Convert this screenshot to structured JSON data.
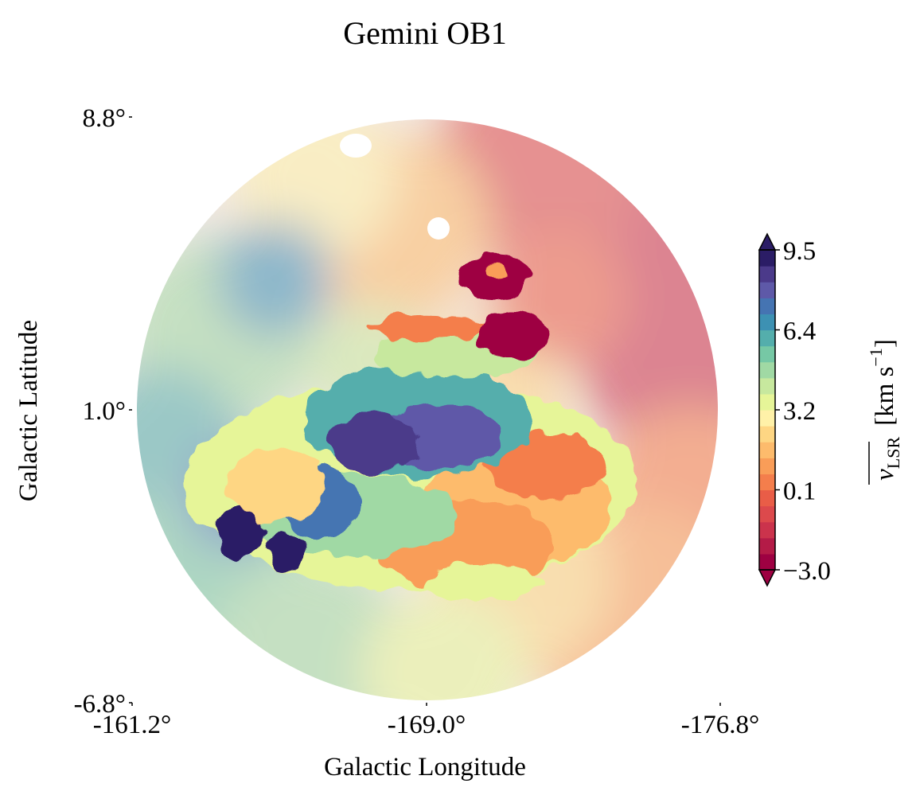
{
  "chart_data": {
    "type": "heatmap",
    "projection": "circular-field",
    "title": "Gemini OB1",
    "xlabel": "Galactic Longitude",
    "ylabel": "Galactic Latitude",
    "x_ticks": [
      "-161.2°",
      "-169.0°",
      "-176.8°"
    ],
    "y_ticks": [
      "8.8°",
      "1.0°",
      "-6.8°"
    ],
    "x_range": [
      -161.2,
      -176.8
    ],
    "y_range": [
      -6.8,
      8.8
    ],
    "field_center": [
      -169.0,
      1.0
    ],
    "field_radius_deg": 7.5,
    "colorbar": {
      "label": "v_LSR [km s^-1]",
      "label_main": "v",
      "label_sub": "LSR",
      "label_unit_open": "[km s",
      "label_unit_exp": "−1",
      "label_unit_close": "]",
      "range": [
        -3.0,
        9.5
      ],
      "ticks": [
        "−3.0",
        "0.1",
        "3.2",
        "6.4",
        "9.5"
      ],
      "extend": "both",
      "colormap": "Spectral",
      "colors": [
        "#9e0142",
        "#b41b47",
        "#cb334c",
        "#dc494c",
        "#e95d47",
        "#f47e4c",
        "#f99d58",
        "#fdbb6c",
        "#fed683",
        "#fff1a8",
        "#e6f598",
        "#c7e89e",
        "#a0d9a4",
        "#76c8a5",
        "#54aeac",
        "#3d91b3",
        "#4574b2",
        "#5e59a8",
        "#4b3a8a",
        "#2b1d66"
      ]
    },
    "annotation": "background field shown semi-transparent; cluster region shown at full opacity",
    "regions": [
      {
        "name": "main-cluster",
        "center": [
          -168.6,
          -0.9
        ],
        "velocity_range": [
          -1.0,
          9.5
        ]
      },
      {
        "name": "red-knot-upper",
        "center": [
          -170.8,
          4.4
        ],
        "velocity_range": [
          -3.0,
          1.0
        ]
      },
      {
        "name": "red-knot-lower",
        "center": [
          -171.3,
          3.0
        ],
        "velocity_range": [
          -3.0,
          1.0
        ]
      },
      {
        "name": "background-east-high-lat",
        "center": [
          -174.0,
          6.0
        ],
        "velocity_range": [
          -2.0,
          1.0
        ]
      },
      {
        "name": "background-west",
        "center": [
          -163.0,
          0.0
        ],
        "velocity_range": [
          3.0,
          7.0
        ]
      }
    ]
  }
}
